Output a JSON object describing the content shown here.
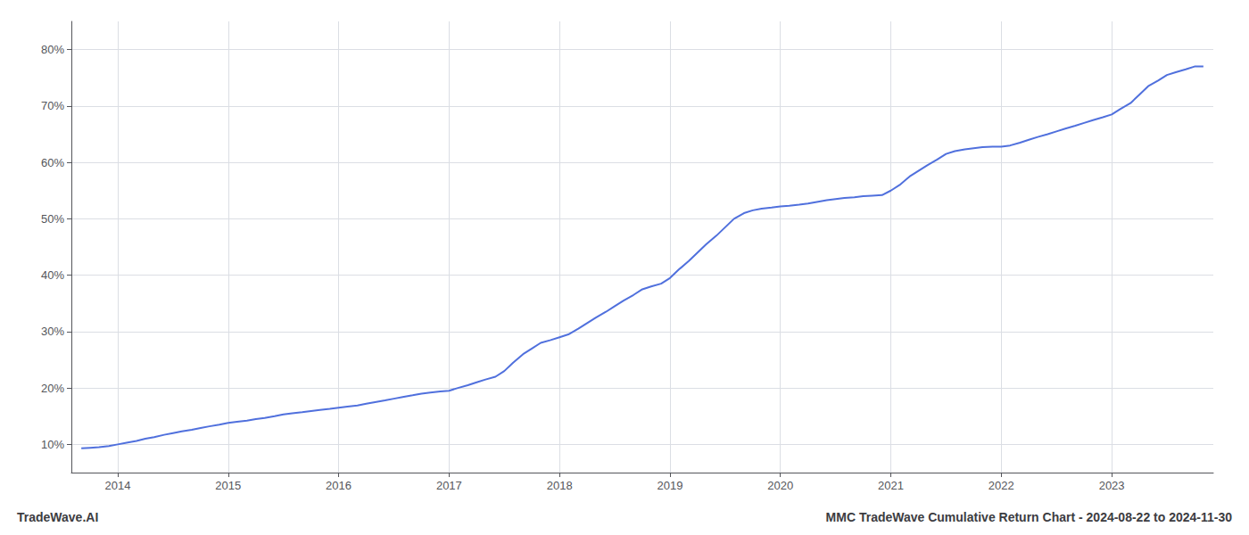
{
  "chart_data": {
    "type": "line",
    "title": "MMC TradeWave Cumulative Return Chart - 2024-08-22 to 2024-11-30",
    "annotations": [
      "TradeWave.AI"
    ],
    "x": [
      2013.67,
      2013.75,
      2013.83,
      2013.92,
      2014.0,
      2014.08,
      2014.17,
      2014.25,
      2014.33,
      2014.42,
      2014.5,
      2014.58,
      2014.67,
      2014.75,
      2014.83,
      2014.92,
      2015.0,
      2015.08,
      2015.17,
      2015.25,
      2015.33,
      2015.42,
      2015.5,
      2015.58,
      2015.67,
      2015.75,
      2015.83,
      2015.92,
      2016.0,
      2016.08,
      2016.17,
      2016.25,
      2016.33,
      2016.42,
      2016.5,
      2016.58,
      2016.67,
      2016.75,
      2016.83,
      2016.92,
      2017.0,
      2017.08,
      2017.17,
      2017.25,
      2017.33,
      2017.42,
      2017.5,
      2017.58,
      2017.67,
      2017.75,
      2017.83,
      2017.92,
      2018.0,
      2018.08,
      2018.17,
      2018.25,
      2018.33,
      2018.42,
      2018.5,
      2018.58,
      2018.67,
      2018.75,
      2018.83,
      2018.92,
      2019.0,
      2019.08,
      2019.17,
      2019.25,
      2019.33,
      2019.42,
      2019.5,
      2019.58,
      2019.67,
      2019.75,
      2019.83,
      2019.92,
      2020.0,
      2020.08,
      2020.17,
      2020.25,
      2020.33,
      2020.42,
      2020.5,
      2020.58,
      2020.67,
      2020.75,
      2020.83,
      2020.92,
      2021.0,
      2021.08,
      2021.17,
      2021.25,
      2021.33,
      2021.42,
      2021.5,
      2021.58,
      2021.67,
      2021.75,
      2021.83,
      2021.92,
      2022.0,
      2022.08,
      2022.17,
      2022.25,
      2022.33,
      2022.42,
      2022.5,
      2022.58,
      2022.67,
      2022.75,
      2022.83,
      2022.92,
      2023.0,
      2023.08,
      2023.17,
      2023.25,
      2023.33,
      2023.42,
      2023.5,
      2023.58,
      2023.67,
      2023.75,
      2023.83
    ],
    "values": [
      9.3,
      9.4,
      9.5,
      9.7,
      10.0,
      10.3,
      10.6,
      11.0,
      11.3,
      11.7,
      12.0,
      12.3,
      12.6,
      12.9,
      13.2,
      13.5,
      13.8,
      14.0,
      14.2,
      14.5,
      14.7,
      15.0,
      15.3,
      15.5,
      15.7,
      15.9,
      16.1,
      16.3,
      16.5,
      16.7,
      16.9,
      17.2,
      17.5,
      17.8,
      18.1,
      18.4,
      18.7,
      19.0,
      19.2,
      19.4,
      19.5,
      20.0,
      20.5,
      21.0,
      21.5,
      22.0,
      23.0,
      24.5,
      26.0,
      27.0,
      28.0,
      28.5,
      29.0,
      29.5,
      30.5,
      31.5,
      32.5,
      33.5,
      34.5,
      35.5,
      36.5,
      37.5,
      38.0,
      38.5,
      39.5,
      41.0,
      42.5,
      44.0,
      45.5,
      47.0,
      48.5,
      50.0,
      51.0,
      51.5,
      51.8,
      52.0,
      52.2,
      52.3,
      52.5,
      52.7,
      53.0,
      53.3,
      53.5,
      53.7,
      53.8,
      54.0,
      54.1,
      54.2,
      55.0,
      56.0,
      57.5,
      58.5,
      59.5,
      60.5,
      61.5,
      62.0,
      62.3,
      62.5,
      62.7,
      62.8,
      62.8,
      63.0,
      63.5,
      64.0,
      64.5,
      65.0,
      65.5,
      66.0,
      66.5,
      67.0,
      67.5,
      68.0,
      68.5,
      69.5,
      70.5,
      72.0,
      73.5,
      74.5,
      75.5,
      76.0,
      76.5,
      77.0,
      77.0
    ],
    "xlim": [
      2013.58,
      2023.92
    ],
    "xticks": [
      2014,
      2015,
      2016,
      2017,
      2018,
      2019,
      2020,
      2021,
      2022,
      2023
    ],
    "ylim": [
      5,
      85
    ],
    "yticks": [
      {
        "value": 10,
        "label": "10%"
      },
      {
        "value": 20,
        "label": "20%"
      },
      {
        "value": 30,
        "label": "30%"
      },
      {
        "value": 40,
        "label": "40%"
      },
      {
        "value": 50,
        "label": "50%"
      },
      {
        "value": 60,
        "label": "60%"
      },
      {
        "value": 70,
        "label": "70%"
      },
      {
        "value": 80,
        "label": "80%"
      }
    ],
    "grid": true
  }
}
